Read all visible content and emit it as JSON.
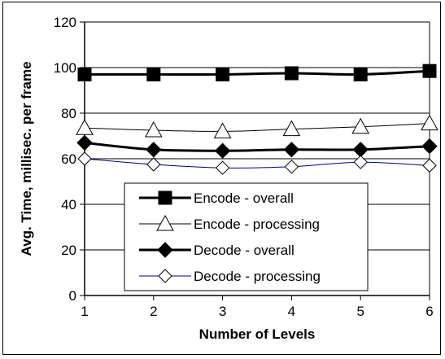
{
  "chart_data": {
    "type": "line",
    "x": [
      1,
      2,
      3,
      4,
      5,
      6
    ],
    "xlabel": "Number of Levels",
    "ylabel": "Avg. Time, millisec. per frame",
    "xlim": [
      1,
      6
    ],
    "ylim": [
      0,
      120
    ],
    "yticks": [
      0,
      20,
      40,
      60,
      80,
      100,
      120
    ],
    "xticks": [
      1,
      2,
      3,
      4,
      5,
      6
    ],
    "grid": "horizontal",
    "legend_position": "lower-center",
    "series": [
      {
        "name": "Encode - overall",
        "values": [
          97,
          97,
          97,
          97.5,
          97,
          98.5
        ],
        "marker": "square-filled",
        "color": "#000000",
        "line_width": 3
      },
      {
        "name": "Encode - processing",
        "values": [
          73.5,
          72.5,
          72,
          73,
          74,
          75.5
        ],
        "marker": "triangle-open",
        "color": "#000000",
        "line_width": 1
      },
      {
        "name": "Decode - overall",
        "values": [
          67,
          64,
          63.5,
          64,
          64,
          65.5
        ],
        "marker": "diamond-filled",
        "color": "#000000",
        "line_width": 3
      },
      {
        "name": "Decode - processing",
        "values": [
          60,
          57.5,
          56,
          56.5,
          58.5,
          57
        ],
        "marker": "diamond-open",
        "color": "#000080",
        "line_width": 1
      }
    ]
  }
}
